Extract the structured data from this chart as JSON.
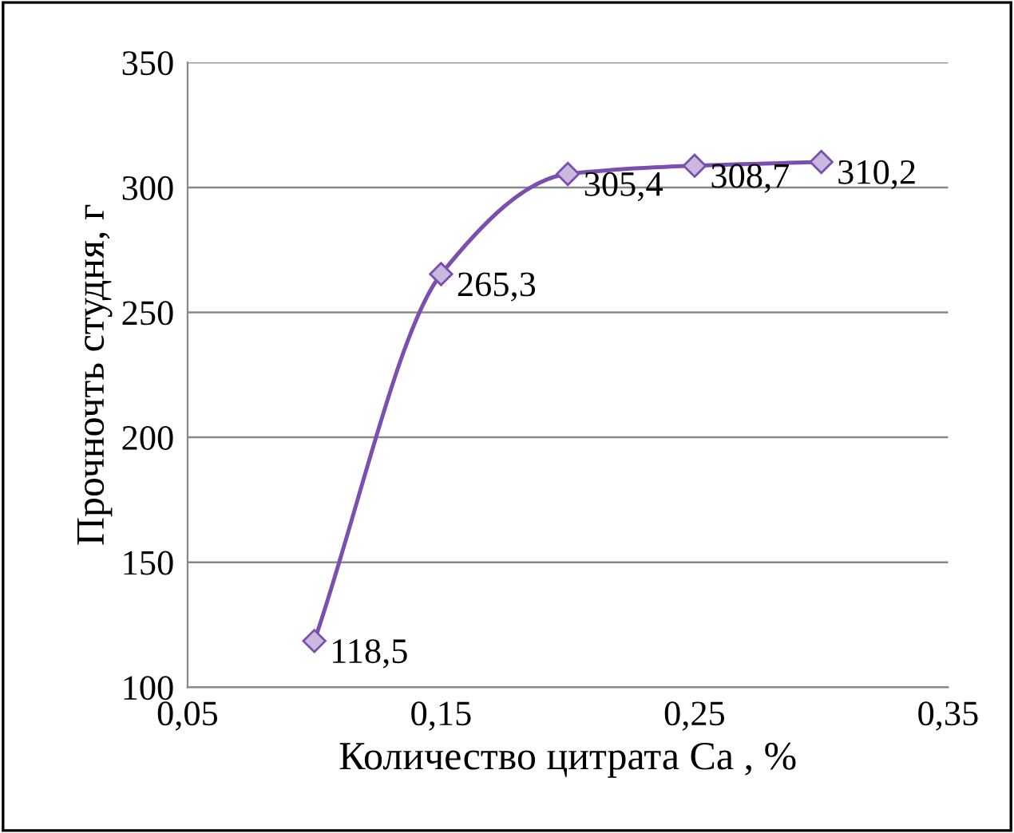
{
  "chart_data": {
    "type": "line",
    "xlabel": "Количество цитрата Са , %",
    "ylabel": "Прочночть студня, г",
    "x": [
      0.1,
      0.15,
      0.2,
      0.25,
      0.3
    ],
    "series": [
      {
        "color": "#7b4fb0",
        "values": [
          118.5,
          265.3,
          305.4,
          308.7,
          310.2
        ],
        "value_labels": [
          "118,5",
          "265,3",
          "305,4",
          "308,7",
          "310,2"
        ]
      }
    ],
    "xlim": [
      0.05,
      0.35
    ],
    "xticks": [
      {
        "value": 0.05,
        "label": "0,05"
      },
      {
        "value": 0.15,
        "label": "0,15"
      },
      {
        "value": 0.25,
        "label": "0,25"
      },
      {
        "value": 0.35,
        "label": "0,35"
      }
    ],
    "ylim": [
      100,
      350
    ],
    "yticks": [
      100,
      150,
      200,
      250,
      300,
      350
    ],
    "grid": "y",
    "marker": "diamond",
    "line_style": "solid"
  }
}
